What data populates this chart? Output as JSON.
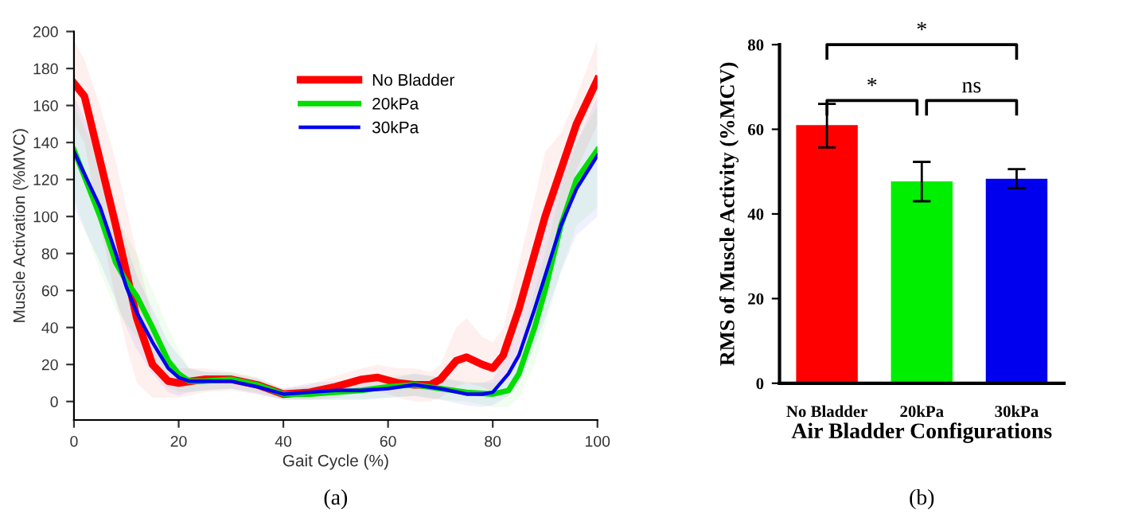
{
  "chart_data": [
    {
      "type": "line",
      "xlabel": "Gait Cycle (%)",
      "ylabel": "Muscle Activation (%MVC)",
      "xlim": [
        0,
        100
      ],
      "ylim": [
        -10,
        200
      ],
      "xticks": [
        0,
        20,
        40,
        60,
        80,
        100
      ],
      "yticks": [
        0,
        20,
        40,
        60,
        80,
        100,
        120,
        140,
        160,
        180,
        200
      ],
      "legend": "top",
      "grid": false,
      "annotations": [
        "(a)"
      ],
      "series": [
        {
          "name": "No Bladder",
          "color": "#ff0000",
          "x": [
            0,
            2,
            5,
            8,
            10,
            12,
            15,
            18,
            20,
            25,
            30,
            35,
            40,
            45,
            50,
            55,
            58,
            62,
            65,
            68,
            70,
            73,
            75,
            78,
            80,
            82,
            85,
            88,
            90,
            93,
            96,
            100
          ],
          "values": [
            172,
            165,
            130,
            95,
            70,
            45,
            20,
            11,
            10,
            12,
            12,
            9,
            4,
            5,
            8,
            12,
            13,
            10,
            9,
            9,
            12,
            22,
            24,
            20,
            18,
            25,
            50,
            80,
            100,
            125,
            150,
            174
          ],
          "lower": [
            150,
            140,
            95,
            55,
            30,
            10,
            2,
            2,
            2,
            5,
            6,
            4,
            1,
            1,
            2,
            5,
            6,
            2,
            0,
            0,
            2,
            8,
            10,
            8,
            5,
            10,
            25,
            50,
            70,
            100,
            125,
            150
          ],
          "upper": [
            195,
            185,
            160,
            130,
            105,
            80,
            45,
            25,
            18,
            18,
            16,
            13,
            7,
            9,
            14,
            18,
            20,
            18,
            18,
            16,
            20,
            40,
            45,
            35,
            32,
            40,
            75,
            110,
            135,
            145,
            165,
            195
          ]
        },
        {
          "name": "20kPa",
          "color": "#00dd00",
          "x": [
            0,
            5,
            8,
            10,
            12,
            15,
            18,
            20,
            22,
            25,
            30,
            35,
            40,
            45,
            50,
            55,
            60,
            65,
            70,
            75,
            80,
            83,
            85,
            88,
            90,
            93,
            96,
            100
          ],
          "values": [
            136,
            100,
            75,
            65,
            57,
            40,
            22,
            15,
            11,
            11,
            12,
            9,
            4,
            4,
            5,
            6,
            8,
            9,
            7,
            5,
            4,
            6,
            15,
            40,
            60,
            95,
            120,
            136
          ],
          "lower": [
            110,
            70,
            50,
            42,
            35,
            20,
            8,
            5,
            5,
            6,
            7,
            5,
            1,
            1,
            1,
            1,
            2,
            3,
            1,
            0,
            -3,
            -3,
            2,
            20,
            40,
            70,
            95,
            105
          ],
          "upper": [
            160,
            130,
            100,
            90,
            80,
            60,
            40,
            28,
            18,
            16,
            16,
            13,
            7,
            8,
            9,
            11,
            14,
            15,
            13,
            11,
            10,
            14,
            28,
            60,
            80,
            115,
            140,
            160
          ]
        },
        {
          "name": "30kPa",
          "color": "#0000ee",
          "x": [
            0,
            5,
            8,
            10,
            12,
            15,
            18,
            20,
            22,
            25,
            30,
            35,
            40,
            45,
            50,
            55,
            60,
            65,
            70,
            75,
            78,
            80,
            83,
            85,
            88,
            90,
            93,
            96,
            100
          ],
          "values": [
            135,
            105,
            80,
            62,
            48,
            32,
            18,
            13,
            11,
            11,
            11,
            8,
            4,
            5,
            6,
            6,
            7,
            9,
            7,
            4,
            4,
            5,
            15,
            25,
            50,
            68,
            95,
            115,
            133
          ],
          "lower": [
            105,
            75,
            55,
            40,
            28,
            15,
            5,
            3,
            5,
            6,
            7,
            4,
            1,
            1,
            1,
            1,
            2,
            3,
            1,
            -2,
            -3,
            -2,
            3,
            10,
            30,
            45,
            70,
            90,
            100
          ],
          "upper": [
            165,
            135,
            105,
            85,
            68,
            50,
            32,
            25,
            18,
            16,
            15,
            12,
            7,
            10,
            11,
            11,
            12,
            15,
            13,
            10,
            10,
            12,
            27,
            40,
            70,
            90,
            120,
            140,
            165
          ]
        }
      ]
    },
    {
      "type": "bar",
      "xlabel": "Air Bladder Configurations",
      "ylabel": "RMS of Muscle Activity (%MCV)",
      "categories": [
        "No Bladder",
        "20kPa",
        "30kPa"
      ],
      "values": [
        61,
        47.7,
        48.3
      ],
      "colors": [
        "#ff0000",
        "#00ee00",
        "#0000ee"
      ],
      "errors": [
        [
          55.7,
          66
        ],
        [
          43,
          52.3
        ],
        [
          46.1,
          50.6
        ]
      ],
      "ylim": [
        0,
        80
      ],
      "yticks": [
        0,
        20,
        40,
        60,
        80
      ],
      "annotations": [
        "*",
        "*",
        "ns",
        "(b)"
      ]
    }
  ]
}
